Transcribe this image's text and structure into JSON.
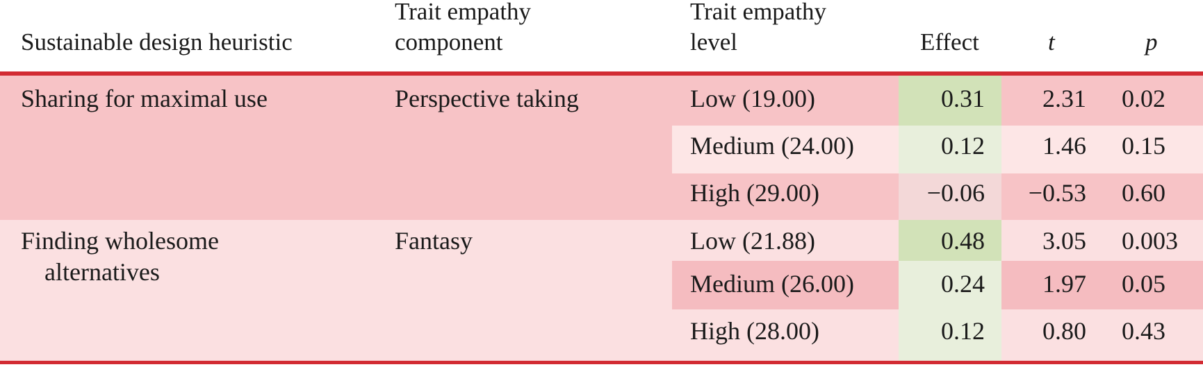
{
  "colors": {
    "rule": "#d22b33",
    "group1_bg": "#f7c3c6",
    "group2_bg": "#fbe0e1",
    "effect_strong_green": "#d2e2b8",
    "effect_light_green": "#e8efdc",
    "effect_negative": "#f3d8d8",
    "row_highlight_dark": "#f5bcc0",
    "row_light": "#fde6e6"
  },
  "headers": {
    "heuristic": "Sustainable design heuristic",
    "component_line1": "Trait empathy",
    "component_line2": "component",
    "level_line1": "Trait empathy",
    "level_line2": "level",
    "effect": "Effect",
    "t": "t",
    "p": "p"
  },
  "groups": [
    {
      "heuristic": "Sharing for maximal use",
      "component": "Perspective taking",
      "rows": [
        {
          "level": "Low (19.00)",
          "effect": "0.31",
          "t": "2.31",
          "p": "0.02"
        },
        {
          "level": "Medium (24.00)",
          "effect": "0.12",
          "t": "1.46",
          "p": "0.15"
        },
        {
          "level": "High (29.00)",
          "effect": "−0.06",
          "t": "−0.53",
          "p": "0.60"
        }
      ]
    },
    {
      "heuristic_line1": "Finding wholesome",
      "heuristic_line2": "alternatives",
      "component": "Fantasy",
      "rows": [
        {
          "level": "Low (21.88)",
          "effect": "0.48",
          "t": "3.05",
          "p": "0.003"
        },
        {
          "level": "Medium (26.00)",
          "effect": "0.24",
          "t": "1.97",
          "p": "0.05"
        },
        {
          "level": "High (28.00)",
          "effect": "0.12",
          "t": "0.80",
          "p": "0.43"
        }
      ]
    }
  ]
}
